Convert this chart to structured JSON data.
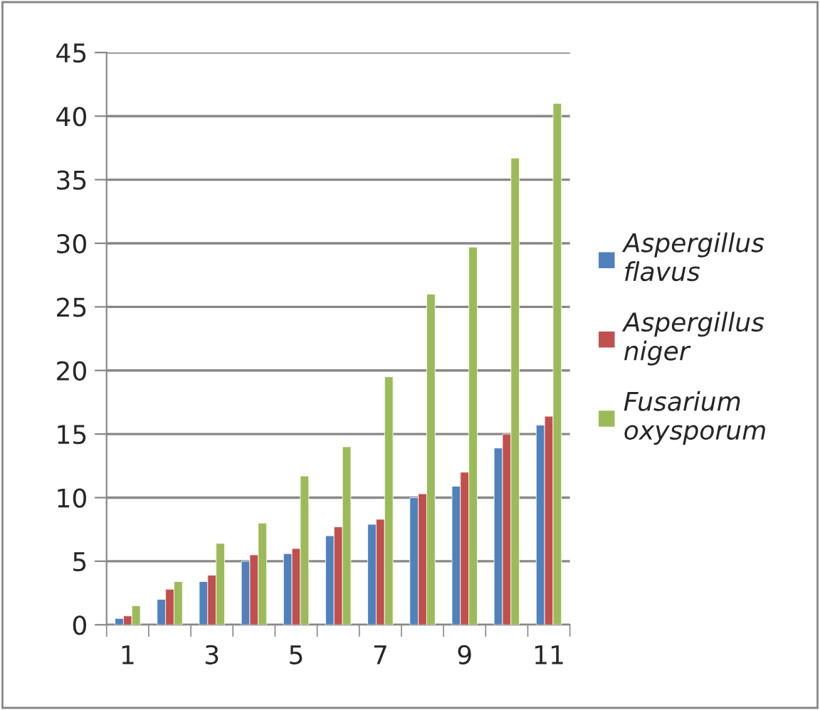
{
  "chart_data": {
    "type": "bar",
    "categories": [
      "1",
      null,
      "3",
      null,
      "5",
      null,
      "7",
      null,
      "9",
      null,
      "11"
    ],
    "series": [
      {
        "name": "Aspergillus flavus",
        "color": "#4f81bd",
        "values": [
          0.5,
          2,
          3.4,
          5,
          5.6,
          7,
          7.9,
          10,
          10.9,
          13.9,
          15.7
        ]
      },
      {
        "name": "Aspergillus niger",
        "color": "#c0504d",
        "values": [
          0.7,
          2.8,
          3.9,
          5.5,
          6,
          7.7,
          8.3,
          10.3,
          12,
          15,
          16.4
        ]
      },
      {
        "name": "Fusarium oxysporum",
        "color": "#9bbb59",
        "values": [
          1.5,
          3.4,
          6.4,
          8,
          11.7,
          14,
          19.5,
          26,
          29.7,
          36.7,
          41
        ]
      }
    ],
    "ylim": [
      0,
      45
    ],
    "yticks": [
      0,
      5,
      10,
      15,
      20,
      25,
      30,
      35,
      40,
      45
    ],
    "grid": "y",
    "legend": "right"
  }
}
